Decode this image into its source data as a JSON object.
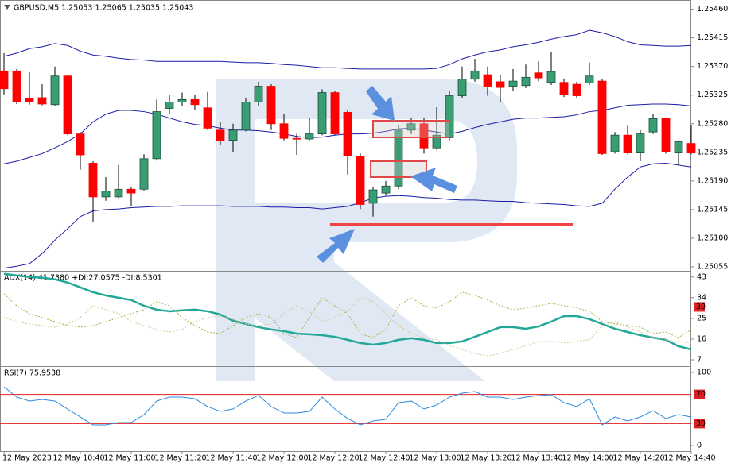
{
  "chart_data": [
    {
      "type": "candlestick",
      "title": "GBPUSD,M5  1.25053 1.25065 1.25035 1.25043",
      "up_color": "#3a9e74",
      "down_color": "#ff0000",
      "open": [
        1.25363,
        1.25363,
        1.2532,
        1.25321,
        1.2531,
        1.25355,
        1.25264,
        1.25218,
        1.25165,
        1.25165,
        1.25177,
        1.25177,
        1.25225,
        1.25304,
        1.25314,
        1.25318,
        1.25305,
        1.2527,
        1.25254,
        1.2527,
        1.25314,
        1.25339,
        1.2528,
        1.25257,
        1.25256,
        1.25264,
        1.25329,
        1.25298,
        1.25229,
        1.25155,
        1.25171,
        1.25182,
        1.2527,
        1.2528,
        1.25242,
        1.25258,
        1.25324,
        1.2535,
        1.25357,
        1.25346,
        1.25339,
        1.2534,
        1.2536,
        1.25345,
        1.25345,
        1.25342,
        1.25344,
        1.25347,
        1.25236,
        1.25262,
        1.25234,
        1.25267,
        1.25288,
        1.25234,
        1.25249
      ],
      "high": [
        1.25391,
        1.25366,
        1.25361,
        1.25342,
        1.2537,
        1.25357,
        1.25267,
        1.25221,
        1.25196,
        1.25215,
        1.25181,
        1.25232,
        1.25318,
        1.25326,
        1.25329,
        1.25326,
        1.2533,
        1.25283,
        1.2528,
        1.2532,
        1.25346,
        1.25342,
        1.25295,
        1.25264,
        1.25289,
        1.25334,
        1.25332,
        1.25301,
        1.25233,
        1.25181,
        1.2519,
        1.25277,
        1.25289,
        1.25289,
        1.25306,
        1.25331,
        1.2537,
        1.25382,
        1.2537,
        1.25357,
        1.25366,
        1.25373,
        1.25378,
        1.25393,
        1.25351,
        1.25346,
        1.25376,
        1.2535,
        1.25267,
        1.25277,
        1.2527,
        1.25295,
        1.25289,
        1.25254,
        1.25277
      ],
      "low": [
        1.25326,
        1.25311,
        1.2531,
        1.25309,
        1.25308,
        1.25262,
        1.25208,
        1.25125,
        1.25159,
        1.25163,
        1.2515,
        1.25175,
        1.25222,
        1.25295,
        1.25308,
        1.25301,
        1.2527,
        1.25246,
        1.25236,
        1.25268,
        1.25308,
        1.2527,
        1.25254,
        1.25231,
        1.25254,
        1.25262,
        1.25262,
        1.252,
        1.25146,
        1.25134,
        1.25167,
        1.25177,
        1.25264,
        1.25233,
        1.25239,
        1.25254,
        1.2532,
        1.25346,
        1.25324,
        1.25314,
        1.25332,
        1.25336,
        1.25347,
        1.25341,
        1.25322,
        1.25321,
        1.25341,
        1.25231,
        1.25233,
        1.25232,
        1.25221,
        1.25264,
        1.25233,
        1.25215,
        1.25232
      ],
      "close": [
        1.25335,
        1.25314,
        1.25314,
        1.25311,
        1.25355,
        1.25264,
        1.25231,
        1.25165,
        1.25174,
        1.25177,
        1.25171,
        1.25225,
        1.25299,
        1.25314,
        1.25318,
        1.2531,
        1.25273,
        1.25254,
        1.2527,
        1.25314,
        1.25339,
        1.2528,
        1.25257,
        1.25256,
        1.25264,
        1.25329,
        1.25264,
        1.25229,
        1.25153,
        1.25176,
        1.25182,
        1.2527,
        1.2528,
        1.25242,
        1.25262,
        1.25324,
        1.2535,
        1.25363,
        1.25339,
        1.25337,
        1.25347,
        1.25353,
        1.25352,
        1.25362,
        1.25326,
        1.25324,
        1.25355,
        1.25233,
        1.25262,
        1.25234,
        1.25264,
        1.25288,
        1.25236,
        1.25252,
        1.25234
      ],
      "series": [
        {
          "color": "#1c1ca8",
          "values": [
            1.25386,
            1.25391,
            1.25398,
            1.25401,
            1.25406,
            1.25403,
            1.25394,
            1.25388,
            1.25386,
            1.25383,
            1.25381,
            1.2538,
            1.25378,
            1.25378,
            1.25378,
            1.25378,
            1.25378,
            1.25378,
            1.25377,
            1.25376,
            1.25376,
            1.25375,
            1.25373,
            1.25372,
            1.2537,
            1.25368,
            1.25368,
            1.25367,
            1.25366,
            1.25366,
            1.25366,
            1.25366,
            1.25366,
            1.25366,
            1.25367,
            1.25373,
            1.25382,
            1.25388,
            1.25393,
            1.25396,
            1.25401,
            1.25404,
            1.25408,
            1.25413,
            1.25417,
            1.2542,
            1.25427,
            1.25423,
            1.25417,
            1.25409,
            1.25404,
            1.25403,
            1.25402,
            1.25402,
            1.25403
          ]
        },
        {
          "color": "#1c1ca8",
          "values": [
            1.25217,
            1.25221,
            1.25227,
            1.25233,
            1.25242,
            1.25252,
            1.25264,
            1.25283,
            1.25295,
            1.25301,
            1.25301,
            1.25299,
            1.25295,
            1.25289,
            1.25283,
            1.25279,
            1.25277,
            1.25273,
            1.2527,
            1.2527,
            1.25269,
            1.25267,
            1.25264,
            1.2526,
            1.25258,
            1.25259,
            1.25262,
            1.25264,
            1.25264,
            1.25265,
            1.25268,
            1.25272,
            1.25273,
            1.2527,
            1.25267,
            1.25264,
            1.25268,
            1.25274,
            1.25279,
            1.25283,
            1.25287,
            1.25289,
            1.25289,
            1.2529,
            1.25291,
            1.25294,
            1.25299,
            1.25301,
            1.25305,
            1.25309,
            1.2531,
            1.25311,
            1.25311,
            1.2531,
            1.25308
          ]
        },
        {
          "color": "#1c1ca8",
          "values": [
            1.25053,
            1.25056,
            1.2506,
            1.25076,
            1.25097,
            1.25115,
            1.25134,
            1.25143,
            1.25145,
            1.25146,
            1.25148,
            1.25149,
            1.2515,
            1.2515,
            1.25151,
            1.25151,
            1.25151,
            1.25151,
            1.2515,
            1.2515,
            1.2515,
            1.25149,
            1.25149,
            1.25148,
            1.25148,
            1.25146,
            1.25148,
            1.2515,
            1.25156,
            1.25163,
            1.25166,
            1.25167,
            1.25166,
            1.25164,
            1.25163,
            1.25161,
            1.2516,
            1.2516,
            1.25159,
            1.25158,
            1.25158,
            1.25156,
            1.25155,
            1.25154,
            1.25153,
            1.25151,
            1.2515,
            1.25155,
            1.25177,
            1.25196,
            1.25212,
            1.25217,
            1.25218,
            1.25215,
            1.25212
          ]
        }
      ],
      "ylim": [
        1.2505,
        1.25472
      ],
      "yticks": [
        {
          "value": 1.2546,
          "label": "1.25460"
        },
        {
          "value": 1.25415,
          "label": "1.25415"
        },
        {
          "value": 1.2537,
          "label": "1.25370"
        },
        {
          "value": 1.25325,
          "label": "1.25325"
        },
        {
          "value": 1.2528,
          "label": "1.25280"
        },
        {
          "value": 1.25235,
          "label": "1.25235"
        },
        {
          "value": 1.2519,
          "label": "1.25190"
        },
        {
          "value": 1.25145,
          "label": "1.25145"
        },
        {
          "value": 1.251,
          "label": "1.25100"
        },
        {
          "value": 1.25055,
          "label": "1.25055"
        }
      ],
      "xticks": [
        {
          "value": 0,
          "label": "12 May 2023"
        },
        {
          "value": 6,
          "label": "12 May 10:40"
        },
        {
          "value": 10,
          "label": "12 May 11:00"
        },
        {
          "value": 14,
          "label": "12 May 11:20"
        },
        {
          "value": 18,
          "label": "12 May 11:40"
        },
        {
          "value": 22,
          "label": "12 May 12:00"
        },
        {
          "value": 26,
          "label": "12 May 12:20"
        },
        {
          "value": 30,
          "label": "12 May 12:40"
        },
        {
          "value": 34,
          "label": "12 May 13:00"
        },
        {
          "value": 38,
          "label": "12 May 13:20"
        },
        {
          "value": 42,
          "label": "12 May 13:40"
        },
        {
          "value": 46,
          "label": "12 May 14:00"
        },
        {
          "value": 50,
          "label": "12 May 14:20"
        },
        {
          "value": 54,
          "label": "12 May 14:40"
        }
      ]
    },
    {
      "type": "line",
      "title": "ADX(14) 41.7380 +DI:27.0575 -DI:8.5301",
      "series": [
        {
          "color": "#22a898",
          "width": 2.5,
          "values": [
            44.4,
            43.7,
            43.0,
            42.7,
            42.0,
            40.6,
            38.5,
            36.4,
            35.0,
            34.0,
            33.0,
            30.5,
            28.8,
            28.1,
            28.5,
            28.8,
            28.1,
            26.7,
            24.0,
            22.6,
            21.2,
            20.2,
            19.5,
            18.4,
            18.1,
            17.7,
            17.0,
            15.7,
            14.3,
            13.6,
            14.3,
            15.7,
            16.4,
            15.7,
            14.3,
            14.3,
            15.0,
            17.0,
            19.1,
            21.2,
            21.2,
            20.5,
            21.5,
            23.6,
            26.0,
            26.0,
            24.7,
            22.6,
            20.5,
            19.1,
            17.7,
            16.7,
            15.7,
            12.9,
            11.5
          ]
        },
        {
          "color": "#9ab84a",
          "width": 1,
          "dotted": true,
          "values": [
            35.7,
            30.5,
            27.1,
            25.4,
            23.6,
            21.9,
            21.2,
            21.9,
            23.6,
            25.4,
            27.1,
            28.8,
            32.3,
            30.5,
            25.4,
            21.9,
            19.1,
            18.4,
            21.9,
            25.4,
            27.1,
            25.4,
            18.4,
            16.7,
            25.4,
            34.0,
            30.5,
            27.1,
            18.4,
            16.7,
            20.2,
            30.5,
            34.0,
            30.5,
            29.5,
            32.3,
            36.4,
            35.0,
            33.0,
            30.5,
            28.8,
            29.5,
            30.5,
            31.6,
            30.5,
            29.5,
            28.1,
            23.6,
            22.6,
            21.9,
            21.2,
            18.4,
            19.1,
            16.7,
            20.2
          ]
        },
        {
          "color": "#dcc590",
          "width": 1,
          "dotted": true,
          "values": [
            25.4,
            23.6,
            22.6,
            21.9,
            21.2,
            22.6,
            25.4,
            30.5,
            28.8,
            27.1,
            23.6,
            21.9,
            20.2,
            19.1,
            20.2,
            23.6,
            25.4,
            26.0,
            24.7,
            22.6,
            21.9,
            22.6,
            27.1,
            30.5,
            28.1,
            23.6,
            25.4,
            28.1,
            34.0,
            32.3,
            27.1,
            21.9,
            18.4,
            16.7,
            15.7,
            13.2,
            11.5,
            9.8,
            8.7,
            9.8,
            11.5,
            13.2,
            15.0,
            15.0,
            14.3,
            15.0,
            15.7,
            21.9,
            23.6,
            21.2,
            19.1,
            16.7,
            15.7,
            15.0,
            14.3
          ]
        }
      ],
      "levels": [
        30
      ],
      "level_color": "#e02020",
      "ylim": [
        4.6,
        45
      ],
      "yticks": [
        43,
        34,
        25,
        16,
        7
      ]
    },
    {
      "type": "line",
      "title": "RSI(7) 75.9538",
      "series": [
        {
          "color": "#2a8ae0",
          "width": 1,
          "values": [
            80.4,
            66.3,
            60.9,
            63.0,
            60.9,
            50.0,
            39.1,
            28.3,
            28.3,
            31.5,
            31.5,
            42.4,
            60.9,
            66.3,
            66.3,
            64.1,
            53.3,
            46.7,
            50.0,
            60.9,
            68.5,
            53.3,
            44.6,
            44.6,
            46.7,
            66.3,
            50.0,
            37.0,
            28.3,
            33.7,
            35.9,
            58.7,
            60.9,
            50.0,
            55.4,
            66.3,
            71.7,
            73.9,
            66.3,
            66.3,
            63.0,
            66.3,
            68.5,
            69.6,
            58.7,
            53.3,
            64.1,
            28.3,
            39.1,
            33.7,
            39.1,
            47.8,
            37.0,
            42.4,
            39.1
          ]
        }
      ],
      "levels": [
        70,
        30
      ],
      "level_color": "#e02020",
      "ylim": [
        -7.6,
        106.5
      ],
      "yticks": [
        100,
        0
      ]
    }
  ]
}
